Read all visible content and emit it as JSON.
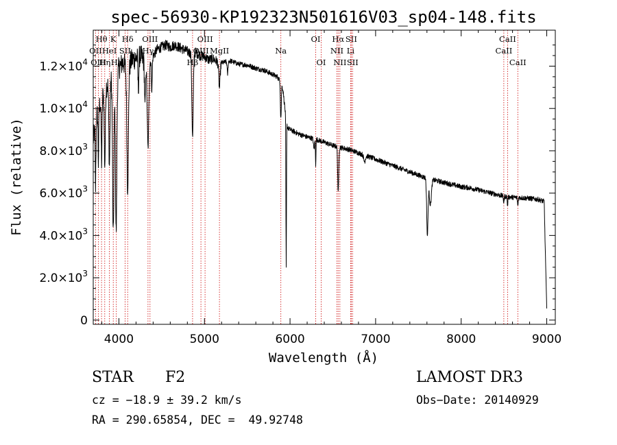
{
  "chart_data": {
    "type": "line",
    "title": "spec-56930-KP192323N501616V03_sp04-148.fits",
    "xlabel": "Wavelength (Å)",
    "ylabel": "Flux (relative)",
    "xlim": [
      3700,
      9100
    ],
    "ylim": [
      -200,
      13700
    ],
    "xticks": [
      4000,
      5000,
      6000,
      7000,
      8000,
      9000
    ],
    "xtick_labels": [
      "4000",
      "5000",
      "6000",
      "7000",
      "8000",
      "9000"
    ],
    "yticks": [
      {
        "value": 0,
        "mant": "0",
        "exp": ""
      },
      {
        "value": 2000,
        "mant": "2.0×10",
        "exp": "3"
      },
      {
        "value": 4000,
        "mant": "4.0×10",
        "exp": "3"
      },
      {
        "value": 6000,
        "mant": "6.0×10",
        "exp": "3"
      },
      {
        "value": 8000,
        "mant": "8.0×10",
        "exp": "3"
      },
      {
        "value": 10000,
        "mant": "1.0×10",
        "exp": "4"
      },
      {
        "value": 12000,
        "mant": "1.2×10",
        "exp": "4"
      }
    ],
    "spectral_lines": [
      {
        "label": "Hθ",
        "wave": 3797,
        "row": 0
      },
      {
        "label": "OII",
        "wave": 3727,
        "row": 1
      },
      {
        "label": "OIII",
        "wave": 3761,
        "row": 2
      },
      {
        "label": "K",
        "wave": 3934,
        "row": 0
      },
      {
        "label": "HeI",
        "wave": 3889,
        "row": 1
      },
      {
        "label": "Hη",
        "wave": 3835,
        "row": 2
      },
      {
        "label": "SII",
        "wave": 4072,
        "row": 1
      },
      {
        "label": "Hε",
        "wave": 3970,
        "row": 2
      },
      {
        "label": "Hδ",
        "wave": 4102,
        "row": 0
      },
      {
        "label": "OIII",
        "wave": 4363,
        "row": 0
      },
      {
        "label": "Hγ",
        "wave": 4340,
        "row": 1
      },
      {
        "label": "Hβ",
        "wave": 4861,
        "row": 2
      },
      {
        "label": "OIII",
        "wave": 5007,
        "row": 0
      },
      {
        "label": "OIII",
        "wave": 4959,
        "row": 1
      },
      {
        "label": "MgII",
        "wave": 5175,
        "row": 1
      },
      {
        "label": "Na",
        "wave": 5893,
        "row": 1
      },
      {
        "label": "OI",
        "wave": 6300,
        "row": 0
      },
      {
        "label": "OI",
        "wave": 6364,
        "row": 2
      },
      {
        "label": "Hα",
        "wave": 6563,
        "row": 0
      },
      {
        "label": "SII",
        "wave": 6716,
        "row": 0
      },
      {
        "label": "NII",
        "wave": 6548,
        "row": 1
      },
      {
        "label": "Li",
        "wave": 6708,
        "row": 1
      },
      {
        "label": "NII",
        "wave": 6583,
        "row": 2
      },
      {
        "label": "SII",
        "wave": 6731,
        "row": 2
      },
      {
        "label": "CaII",
        "wave": 8542,
        "row": 0
      },
      {
        "label": "CaII",
        "wave": 8498,
        "row": 1
      },
      {
        "label": "CaII",
        "wave": 8662,
        "row": 2
      }
    ],
    "spectrum": {
      "continuum": [
        [
          3700,
          8500
        ],
        [
          3750,
          9800
        ],
        [
          3800,
          10500
        ],
        [
          3850,
          11000
        ],
        [
          3900,
          11400
        ],
        [
          3950,
          11500
        ],
        [
          4000,
          11900
        ],
        [
          4050,
          12200
        ],
        [
          4100,
          11800
        ],
        [
          4150,
          12300
        ],
        [
          4200,
          12400
        ],
        [
          4250,
          12500
        ],
        [
          4300,
          12200
        ],
        [
          4350,
          12100
        ],
        [
          4400,
          12500
        ],
        [
          4450,
          12800
        ],
        [
          4500,
          12900
        ],
        [
          4550,
          13000
        ],
        [
          4600,
          12900
        ],
        [
          4650,
          13000
        ],
        [
          4700,
          12900
        ],
        [
          4750,
          12800
        ],
        [
          4800,
          12700
        ],
        [
          4850,
          12600
        ],
        [
          4900,
          12650
        ],
        [
          4950,
          12500
        ],
        [
          5000,
          12450
        ],
        [
          5050,
          12300
        ],
        [
          5100,
          12350
        ],
        [
          5150,
          12200
        ],
        [
          5200,
          12150
        ],
        [
          5300,
          12250
        ],
        [
          5400,
          12100
        ],
        [
          5500,
          12050
        ],
        [
          5600,
          11900
        ],
        [
          5700,
          11800
        ],
        [
          5800,
          11600
        ],
        [
          5850,
          11500
        ],
        [
          5900,
          11200
        ],
        [
          5920,
          10800
        ],
        [
          5950,
          9600
        ],
        [
          5970,
          9100
        ],
        [
          6000,
          9000
        ],
        [
          6100,
          8800
        ],
        [
          6200,
          8650
        ],
        [
          6300,
          8550
        ],
        [
          6400,
          8400
        ],
        [
          6500,
          8250
        ],
        [
          6600,
          8150
        ],
        [
          6700,
          8050
        ],
        [
          6800,
          7900
        ],
        [
          6900,
          7750
        ],
        [
          7000,
          7600
        ],
        [
          7100,
          7450
        ],
        [
          7200,
          7300
        ],
        [
          7300,
          7150
        ],
        [
          7400,
          7000
        ],
        [
          7500,
          6850
        ],
        [
          7600,
          6700
        ],
        [
          7700,
          6600
        ],
        [
          7800,
          6500
        ],
        [
          7900,
          6400
        ],
        [
          8000,
          6300
        ],
        [
          8100,
          6250
        ],
        [
          8200,
          6150
        ],
        [
          8300,
          6050
        ],
        [
          8400,
          5950
        ],
        [
          8500,
          5850
        ],
        [
          8600,
          5800
        ],
        [
          8700,
          5780
        ],
        [
          8800,
          5750
        ],
        [
          8900,
          5700
        ],
        [
          8970,
          5600
        ],
        [
          8985,
          3000
        ],
        [
          9000,
          500
        ]
      ],
      "absorption": [
        {
          "wave": 3727,
          "depth": 3000,
          "width": 4
        },
        {
          "wave": 3760,
          "depth": 2500,
          "width": 4
        },
        {
          "wave": 3798,
          "depth": 3000,
          "width": 5
        },
        {
          "wave": 3835,
          "depth": 3500,
          "width": 6
        },
        {
          "wave": 3889,
          "depth": 4000,
          "width": 7
        },
        {
          "wave": 3934,
          "depth": 7500,
          "width": 8
        },
        {
          "wave": 3968,
          "depth": 7500,
          "width": 8
        },
        {
          "wave": 4102,
          "depth": 5500,
          "width": 9
        },
        {
          "wave": 4227,
          "depth": 1500,
          "width": 5
        },
        {
          "wave": 4305,
          "depth": 2000,
          "width": 6
        },
        {
          "wave": 4340,
          "depth": 4000,
          "width": 9
        },
        {
          "wave": 4385,
          "depth": 1500,
          "width": 5
        },
        {
          "wave": 4861,
          "depth": 4000,
          "width": 8
        },
        {
          "wave": 5175,
          "depth": 1200,
          "width": 8
        },
        {
          "wave": 5270,
          "depth": 600,
          "width": 5
        },
        {
          "wave": 5890,
          "depth": 1200,
          "width": 4
        },
        {
          "wave": 5896,
          "depth": 1000,
          "width": 4
        },
        {
          "wave": 5955,
          "depth": 7000,
          "width": 3
        },
        {
          "wave": 6280,
          "depth": 500,
          "width": 6
        },
        {
          "wave": 6300,
          "depth": 1200,
          "width": 3
        },
        {
          "wave": 6563,
          "depth": 2200,
          "width": 6
        },
        {
          "wave": 6870,
          "depth": 300,
          "width": 10
        },
        {
          "wave": 7605,
          "depth": 2700,
          "width": 8
        },
        {
          "wave": 7640,
          "depth": 1200,
          "width": 12
        },
        {
          "wave": 8498,
          "depth": 300,
          "width": 4
        },
        {
          "wave": 8542,
          "depth": 400,
          "width": 4
        },
        {
          "wave": 8662,
          "depth": 400,
          "width": 4
        }
      ],
      "noise": 120
    }
  },
  "info": {
    "obj_class": "STAR",
    "subclass": "F2",
    "survey": "LAMOST DR3",
    "cz": "cz = −18.9 ± 39.2 km/s",
    "obs_date": "Obs−Date: 20140929",
    "coords": "RA = 290.65854, DEC =  49.92748"
  },
  "colors": {
    "spectrum": "#000000",
    "line_marker": "#cc0000",
    "axes": "#000000",
    "background": "#ffffff"
  }
}
